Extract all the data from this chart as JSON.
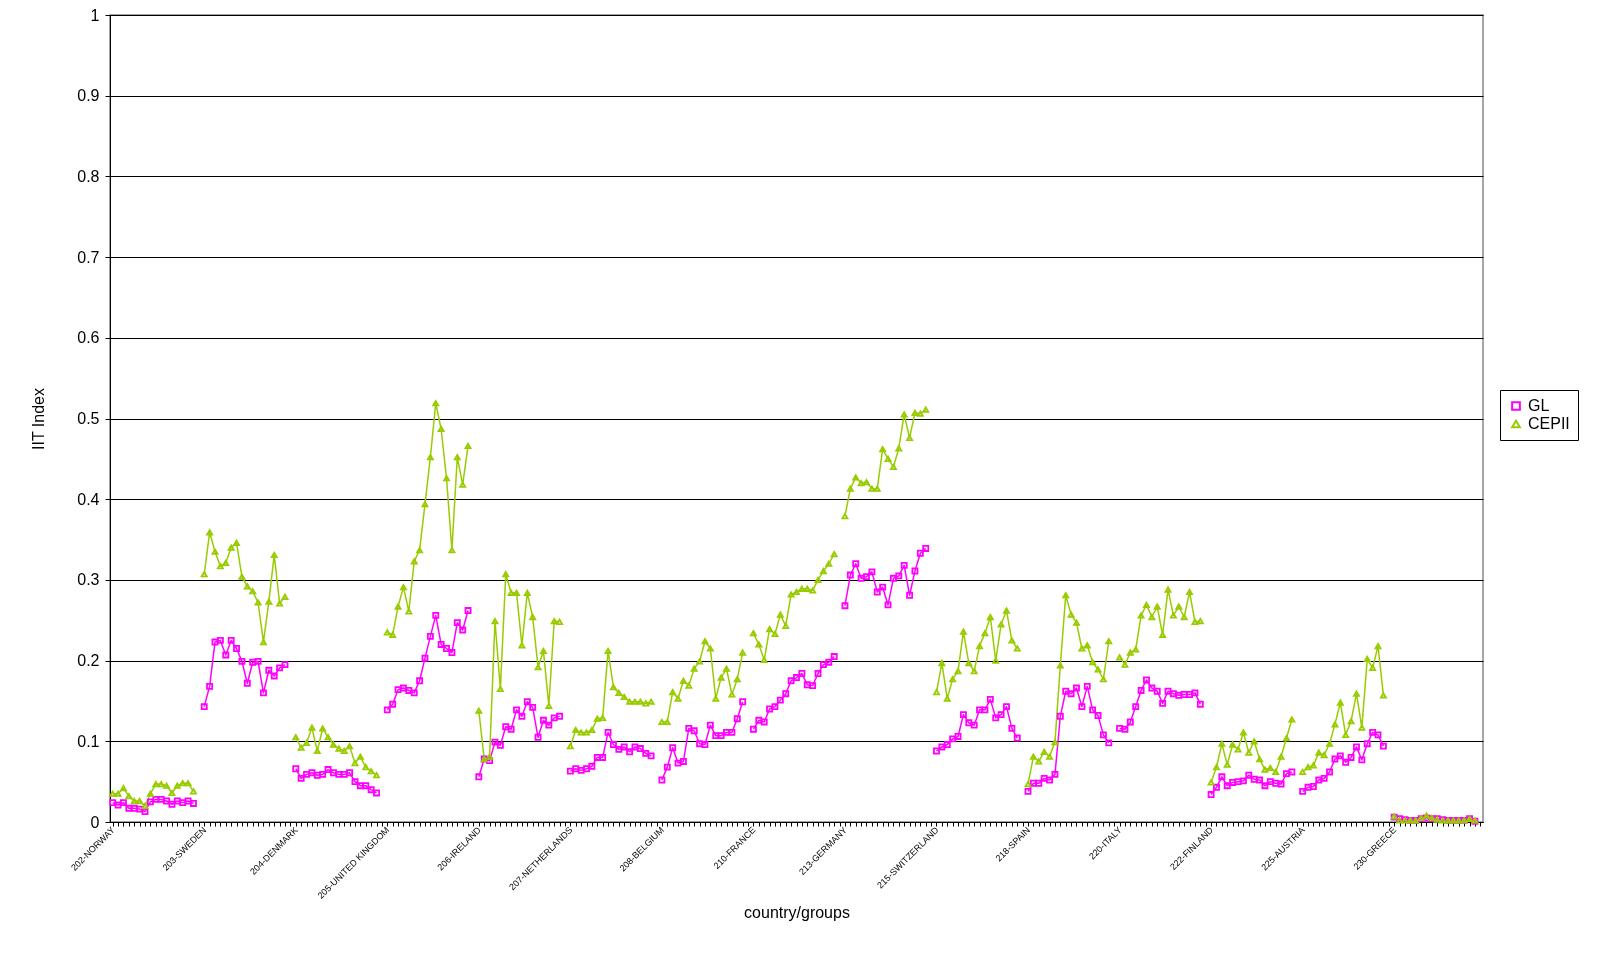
{
  "chart_data": {
    "type": "line",
    "xlabel": "country/groups",
    "ylabel": "IIT Index",
    "grid": "y",
    "legend": "right",
    "line_style": "solid",
    "ylim": [
      0,
      1
    ],
    "yticks": [
      0,
      0.1,
      0.2,
      0.3,
      0.4,
      0.5,
      0.6,
      0.7,
      0.8,
      0.9,
      1
    ],
    "categories": [
      "202-NORWAY",
      null,
      null,
      null,
      null,
      null,
      null,
      null,
      null,
      null,
      null,
      null,
      null,
      null,
      null,
      null,
      null,
      "203-SWEDEN",
      null,
      null,
      null,
      null,
      null,
      null,
      null,
      null,
      null,
      null,
      null,
      null,
      null,
      null,
      null,
      null,
      "204-DENMARK",
      null,
      null,
      null,
      null,
      null,
      null,
      null,
      null,
      null,
      null,
      null,
      null,
      null,
      null,
      null,
      null,
      "205-UNITED KINGDOM",
      null,
      null,
      null,
      null,
      null,
      null,
      null,
      null,
      null,
      null,
      null,
      null,
      null,
      null,
      null,
      null,
      "206-IRELAND",
      null,
      null,
      null,
      null,
      null,
      null,
      null,
      null,
      null,
      null,
      null,
      null,
      null,
      null,
      null,
      null,
      "207-NETHERLANDS",
      null,
      null,
      null,
      null,
      null,
      null,
      null,
      null,
      null,
      null,
      null,
      null,
      null,
      null,
      null,
      null,
      "208-BELGIUM",
      null,
      null,
      null,
      null,
      null,
      null,
      null,
      null,
      null,
      null,
      null,
      null,
      null,
      null,
      null,
      null,
      "210-FRANCE",
      null,
      null,
      null,
      null,
      null,
      null,
      null,
      null,
      null,
      null,
      null,
      null,
      null,
      null,
      null,
      null,
      "213-GERMANY",
      null,
      null,
      null,
      null,
      null,
      null,
      null,
      null,
      null,
      null,
      null,
      null,
      null,
      null,
      null,
      null,
      "215-SWITZERLAND",
      null,
      null,
      null,
      null,
      null,
      null,
      null,
      null,
      null,
      null,
      null,
      null,
      null,
      null,
      null,
      null,
      "218-SPAIN",
      null,
      null,
      null,
      null,
      null,
      null,
      null,
      null,
      null,
      null,
      null,
      null,
      null,
      null,
      null,
      null,
      "220-ITALY",
      null,
      null,
      null,
      null,
      null,
      null,
      null,
      null,
      null,
      null,
      null,
      null,
      null,
      null,
      null,
      null,
      "222-FINLAND",
      null,
      null,
      null,
      null,
      null,
      null,
      null,
      null,
      null,
      null,
      null,
      null,
      null,
      null,
      null,
      null,
      "225-AUSTRIA",
      null,
      null,
      null,
      null,
      null,
      null,
      null,
      null,
      null,
      null,
      null,
      null,
      null,
      null,
      null,
      null,
      "230-GREECE",
      null,
      null,
      null,
      null,
      null,
      null,
      null,
      null,
      null,
      null,
      null,
      null,
      null,
      null,
      null,
      null
    ],
    "series": [
      {
        "name": "GL",
        "color": "#ff00ff",
        "marker": "square",
        "values": [
          0.024,
          0.021,
          0.024,
          0.017,
          0.017,
          0.016,
          0.013,
          0.025,
          0.028,
          0.028,
          0.026,
          0.022,
          0.026,
          0.024,
          0.026,
          0.023,
          null,
          0.143,
          0.168,
          0.223,
          0.225,
          0.207,
          0.225,
          0.215,
          0.199,
          0.172,
          0.198,
          0.199,
          0.16,
          0.188,
          0.181,
          0.191,
          0.195,
          null,
          0.066,
          0.054,
          0.059,
          0.061,
          0.058,
          0.059,
          0.065,
          0.061,
          0.059,
          0.059,
          0.061,
          0.05,
          0.045,
          0.045,
          0.04,
          0.036,
          null,
          0.139,
          0.146,
          0.164,
          0.166,
          0.163,
          0.16,
          0.175,
          0.203,
          0.23,
          0.256,
          0.22,
          0.215,
          0.21,
          0.247,
          0.238,
          0.262,
          null,
          0.056,
          0.078,
          0.076,
          0.099,
          0.095,
          0.118,
          0.115,
          0.139,
          0.131,
          0.149,
          0.142,
          0.105,
          0.126,
          0.12,
          0.129,
          0.131,
          null,
          0.063,
          0.066,
          0.064,
          0.066,
          0.069,
          0.08,
          0.08,
          0.111,
          0.096,
          0.09,
          0.093,
          0.087,
          0.093,
          0.091,
          0.085,
          0.082,
          null,
          0.052,
          0.068,
          0.092,
          0.073,
          0.075,
          0.116,
          0.113,
          0.097,
          0.096,
          0.12,
          0.107,
          0.107,
          0.111,
          0.111,
          0.128,
          0.149,
          null,
          0.115,
          0.126,
          0.124,
          0.14,
          0.143,
          0.151,
          0.159,
          0.175,
          0.179,
          0.184,
          0.17,
          0.169,
          0.184,
          0.195,
          0.198,
          0.205,
          null,
          0.268,
          0.306,
          0.32,
          0.302,
          0.304,
          0.31,
          0.285,
          0.291,
          0.269,
          0.302,
          0.305,
          0.318,
          0.281,
          0.311,
          0.333,
          0.339,
          null,
          0.088,
          0.093,
          0.096,
          0.103,
          0.106,
          0.133,
          0.123,
          0.12,
          0.139,
          0.139,
          0.152,
          0.129,
          0.133,
          0.143,
          0.116,
          0.104,
          null,
          0.038,
          0.048,
          0.048,
          0.054,
          0.052,
          0.059,
          0.131,
          0.162,
          0.159,
          0.166,
          0.143,
          0.168,
          0.139,
          0.132,
          0.108,
          0.098,
          null,
          0.116,
          0.115,
          0.124,
          0.143,
          0.163,
          0.176,
          0.166,
          0.162,
          0.147,
          0.162,
          0.159,
          0.157,
          0.158,
          0.158,
          0.16,
          0.146,
          null,
          0.034,
          0.043,
          0.056,
          0.045,
          0.049,
          0.05,
          0.051,
          0.058,
          0.053,
          0.052,
          0.045,
          0.05,
          0.048,
          0.047,
          0.06,
          0.062,
          null,
          0.038,
          0.043,
          0.044,
          0.052,
          0.054,
          0.062,
          0.078,
          0.082,
          0.074,
          0.08,
          0.093,
          0.077,
          0.097,
          0.111,
          0.108,
          0.094,
          null,
          0.006,
          0.004,
          0.003,
          0.002,
          0.002,
          0.004,
          0.005,
          0.004,
          0.004,
          0.003,
          0.002,
          0.002,
          0.002,
          0.002,
          0.004,
          0.001,
          null
        ]
      },
      {
        "name": "CEPII",
        "color": "#99cc00",
        "marker": "triangle",
        "values": [
          0.035,
          0.035,
          0.042,
          0.032,
          0.026,
          0.026,
          0.02,
          0.035,
          0.047,
          0.047,
          0.045,
          0.036,
          0.045,
          0.048,
          0.048,
          0.038,
          null,
          0.307,
          0.359,
          0.335,
          0.317,
          0.321,
          0.34,
          0.346,
          0.304,
          0.292,
          0.286,
          0.272,
          0.223,
          0.273,
          0.331,
          0.271,
          0.279,
          null,
          0.105,
          0.092,
          0.098,
          0.117,
          0.088,
          0.116,
          0.105,
          0.096,
          0.091,
          0.088,
          0.094,
          0.073,
          0.081,
          0.068,
          0.063,
          0.058,
          null,
          0.235,
          0.232,
          0.267,
          0.291,
          0.261,
          0.323,
          0.337,
          0.394,
          0.452,
          0.519,
          0.487,
          0.426,
          0.337,
          0.452,
          0.418,
          0.466,
          null,
          0.138,
          0.078,
          0.081,
          0.249,
          0.165,
          0.307,
          0.284,
          0.284,
          0.219,
          0.284,
          0.254,
          0.192,
          0.212,
          0.144,
          0.249,
          0.248,
          null,
          0.094,
          0.114,
          0.111,
          0.111,
          0.114,
          0.128,
          0.129,
          0.212,
          0.167,
          0.16,
          0.155,
          0.149,
          0.149,
          0.149,
          0.147,
          0.149,
          null,
          0.124,
          0.124,
          0.161,
          0.153,
          0.175,
          0.169,
          0.19,
          0.199,
          0.224,
          0.215,
          0.153,
          0.179,
          0.19,
          0.158,
          0.177,
          0.21,
          null,
          0.234,
          0.22,
          0.201,
          0.239,
          0.233,
          0.257,
          0.243,
          0.282,
          0.285,
          0.289,
          0.289,
          0.287,
          0.3,
          0.311,
          0.32,
          0.332,
          null,
          0.379,
          0.413,
          0.427,
          0.42,
          0.421,
          0.413,
          0.413,
          0.462,
          0.45,
          0.44,
          0.463,
          0.505,
          0.476,
          0.507,
          0.506,
          0.511,
          null,
          0.161,
          0.197,
          0.153,
          0.177,
          0.187,
          0.236,
          0.197,
          0.187,
          0.218,
          0.234,
          0.254,
          0.2,
          0.245,
          0.262,
          0.225,
          0.215,
          null,
          0.047,
          0.081,
          0.075,
          0.087,
          0.081,
          0.099,
          0.194,
          0.281,
          0.257,
          0.247,
          0.215,
          0.219,
          0.198,
          0.189,
          0.177,
          0.224,
          null,
          0.204,
          0.195,
          0.21,
          0.214,
          0.256,
          0.269,
          0.254,
          0.267,
          0.232,
          0.288,
          0.256,
          0.267,
          0.254,
          0.285,
          0.248,
          0.249,
          null,
          0.049,
          0.068,
          0.097,
          0.071,
          0.096,
          0.09,
          0.111,
          0.086,
          0.1,
          0.078,
          0.065,
          0.067,
          0.062,
          0.081,
          0.104,
          0.127,
          null,
          0.062,
          0.068,
          0.07,
          0.086,
          0.083,
          0.097,
          0.121,
          0.148,
          0.108,
          0.125,
          0.159,
          0.117,
          0.202,
          0.191,
          0.218,
          0.157,
          null,
          0.007,
          0.002,
          0.002,
          0.002,
          0.002,
          0.005,
          0.008,
          0.005,
          0.003,
          0.002,
          0.002,
          0.002,
          0.002,
          0.002,
          0.004,
          0.002,
          null
        ]
      }
    ]
  }
}
